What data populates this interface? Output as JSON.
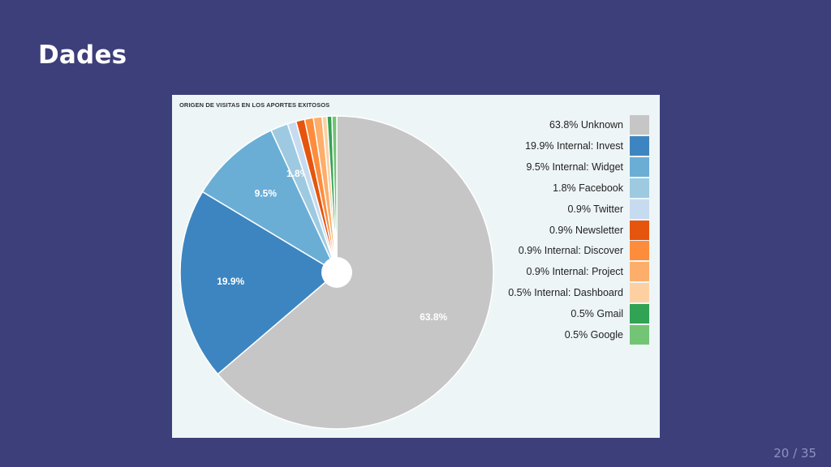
{
  "slide": {
    "title": "Dades",
    "page": "20 / 35"
  },
  "chart_data": {
    "type": "pie",
    "title": "ORIGEN DE VISITAS EN LOS APORTES EXITOSOS",
    "legend_position": "right",
    "slices": [
      {
        "legend": "63.8% Unknown",
        "label": "63.8%",
        "value": 63.8,
        "color": "#c6c6c6"
      },
      {
        "legend": "19.9% Internal: Invest",
        "label": "19.9%",
        "value": 19.9,
        "color": "#3d85c0"
      },
      {
        "legend": "9.5% Internal: Widget",
        "label": "9.5%",
        "value": 9.5,
        "color": "#6aaed6"
      },
      {
        "legend": "1.8% Facebook",
        "label": "1.8%",
        "value": 1.8,
        "color": "#9ecae1"
      },
      {
        "legend": "0.9% Twitter",
        "label": "",
        "value": 0.9,
        "color": "#c6dbef"
      },
      {
        "legend": "0.9% Newsletter",
        "label": "",
        "value": 0.9,
        "color": "#e6550d"
      },
      {
        "legend": "0.9% Internal: Discover",
        "label": "",
        "value": 0.9,
        "color": "#fd8d3c"
      },
      {
        "legend": "0.9% Internal: Project",
        "label": "",
        "value": 0.9,
        "color": "#fdae6b"
      },
      {
        "legend": "0.5% Internal: Dashboard",
        "label": "",
        "value": 0.5,
        "color": "#fdd0a2"
      },
      {
        "legend": "0.5% Gmail",
        "label": "",
        "value": 0.5,
        "color": "#31a354"
      },
      {
        "legend": "0.5% Google",
        "label": "",
        "value": 0.5,
        "color": "#74c476"
      }
    ]
  }
}
